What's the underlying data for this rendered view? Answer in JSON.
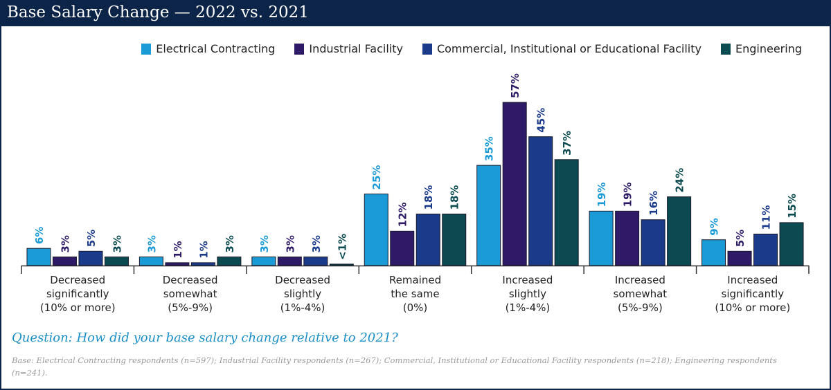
{
  "title": "Base Salary Change — 2022 vs. 2021",
  "colors": {
    "header_bg": "#0b2447",
    "question": "#1a8fc7"
  },
  "chart_data": {
    "type": "bar",
    "title": "Base Salary Change — 2022 vs. 2021",
    "categories": [
      [
        "Decreased",
        "significantly",
        "(10% or more)"
      ],
      [
        "Decreased",
        "somewhat",
        "(5%-9%)"
      ],
      [
        "Decreased",
        "slightly",
        "(1%-4%)"
      ],
      [
        "Remained",
        "the same",
        "(0%)"
      ],
      [
        "Increased",
        "slightly",
        "(1%-4%)"
      ],
      [
        "Increased",
        "somewhat",
        "(5%-9%)"
      ],
      [
        "Increased",
        "significantly",
        "(10% or more)"
      ]
    ],
    "series": [
      {
        "name": "Electrical Contracting",
        "color": "#1a9ad6",
        "label_color": "#1a9ad6",
        "values": [
          6,
          3,
          3,
          25,
          35,
          19,
          9
        ],
        "labels": [
          "6%",
          "3%",
          "3%",
          "25%",
          "35%",
          "19%",
          "9%"
        ]
      },
      {
        "name": "Industrial Facility",
        "color": "#2e1a67",
        "label_color": "#2e1a67",
        "values": [
          3,
          1,
          3,
          12,
          57,
          19,
          5
        ],
        "labels": [
          "3%",
          "1%",
          "3%",
          "12%",
          "57%",
          "19%",
          "5%"
        ]
      },
      {
        "name": "Commercial, Institutional or Educational Facility",
        "color": "#1a3a8a",
        "label_color": "#1a3a8a",
        "values": [
          5,
          1,
          3,
          18,
          45,
          16,
          11
        ],
        "labels": [
          "5%",
          "1%",
          "3%",
          "18%",
          "45%",
          "16%",
          "11%"
        ]
      },
      {
        "name": "Engineering",
        "color": "#0a4a50",
        "label_color": "#0a4a50",
        "values": [
          3,
          3,
          0.5,
          18,
          37,
          24,
          15
        ],
        "labels": [
          "3%",
          "3%",
          "<1%",
          "18%",
          "37%",
          "24%",
          "15%"
        ]
      }
    ],
    "ylim": [
      0,
      60
    ],
    "grid": false,
    "legend": "top-right",
    "xlabel": "",
    "ylabel": ""
  },
  "question": "Question: How did your base salary change relative to 2021?",
  "base_note": "Base: Electrical Contracting respondents (n=597); Industrial Facility respondents (n=267); Commercial, Institutional or Educational Facility respondents (n=218); Engineering respondents (n=241)."
}
